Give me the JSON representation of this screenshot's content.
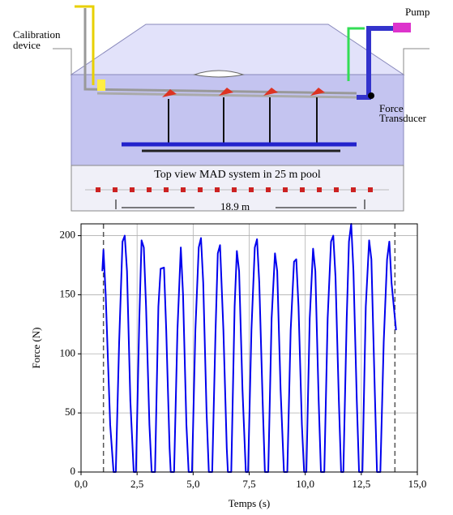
{
  "diagram": {
    "calibration_label": [
      "Calibration",
      "device"
    ],
    "pump_label": "Pump",
    "transducer_label": [
      "Force",
      "Transducer"
    ],
    "inset_title": "Top view MAD system in 25 m pool",
    "distance_label": "18.9 m"
  },
  "chart_data": {
    "type": "line",
    "xlabel": "Temps (s)",
    "ylabel": "Force (N)",
    "color": "#0000ee",
    "x": [
      0.95,
      1.0,
      1.1,
      1.3,
      1.45,
      1.55,
      1.7,
      1.85,
      1.95,
      2.05,
      2.2,
      2.35,
      2.45,
      2.6,
      2.7,
      2.8,
      2.9,
      3.05,
      3.15,
      3.3,
      3.45,
      3.55,
      3.7,
      3.8,
      3.95,
      4.0,
      4.15,
      4.3,
      4.45,
      4.55,
      4.7,
      4.8,
      4.95,
      5.1,
      5.25,
      5.35,
      5.45,
      5.6,
      5.7,
      5.85,
      6.0,
      6.1,
      6.2,
      6.35,
      6.5,
      6.55,
      6.7,
      6.85,
      6.95,
      7.05,
      7.2,
      7.35,
      7.45,
      7.6,
      7.75,
      7.85,
      7.95,
      8.1,
      8.2,
      8.35,
      8.5,
      8.65,
      8.75,
      8.9,
      9.05,
      9.2,
      9.35,
      9.5,
      9.6,
      9.7,
      9.85,
      9.95,
      10.05,
      10.2,
      10.35,
      10.45,
      10.6,
      10.7,
      10.85,
      11.0,
      11.15,
      11.25,
      11.35,
      11.5,
      11.6,
      11.7,
      11.85,
      11.95,
      12.05,
      12.15,
      12.3,
      12.4,
      12.55,
      12.7,
      12.85,
      12.95,
      13.1,
      13.2,
      13.35,
      13.5,
      13.65,
      13.75,
      13.85,
      13.95,
      14.05
    ],
    "values": [
      170,
      188,
      150,
      40,
      0,
      0,
      110,
      195,
      200,
      170,
      60,
      0,
      0,
      130,
      196,
      190,
      140,
      40,
      0,
      0,
      140,
      172,
      173,
      120,
      20,
      0,
      0,
      120,
      190,
      150,
      40,
      0,
      0,
      120,
      190,
      198,
      160,
      50,
      0,
      0,
      120,
      185,
      192,
      120,
      20,
      0,
      0,
      140,
      187,
      170,
      70,
      0,
      0,
      120,
      190,
      197,
      160,
      60,
      0,
      0,
      130,
      185,
      170,
      70,
      0,
      0,
      120,
      178,
      180,
      140,
      40,
      0,
      0,
      130,
      189,
      170,
      60,
      0,
      0,
      130,
      195,
      200,
      165,
      60,
      0,
      0,
      130,
      195,
      210,
      170,
      60,
      0,
      0,
      140,
      196,
      180,
      70,
      0,
      0,
      110,
      180,
      195,
      160,
      140,
      120
    ],
    "xlim": [
      0,
      15
    ],
    "ylim": [
      0,
      210
    ],
    "xticks": [
      {
        "value": 0,
        "label": "0,0"
      },
      {
        "value": 2.5,
        "label": "2,5"
      },
      {
        "value": 5,
        "label": "5,0"
      },
      {
        "value": 7.5,
        "label": "7,5"
      },
      {
        "value": 10,
        "label": "10,0"
      },
      {
        "value": 12.5,
        "label": "12,5"
      },
      {
        "value": 15,
        "label": "15,0"
      }
    ],
    "yticks": [
      0,
      50,
      100,
      150,
      200
    ],
    "grid": true,
    "vlines": [
      1,
      14
    ]
  }
}
